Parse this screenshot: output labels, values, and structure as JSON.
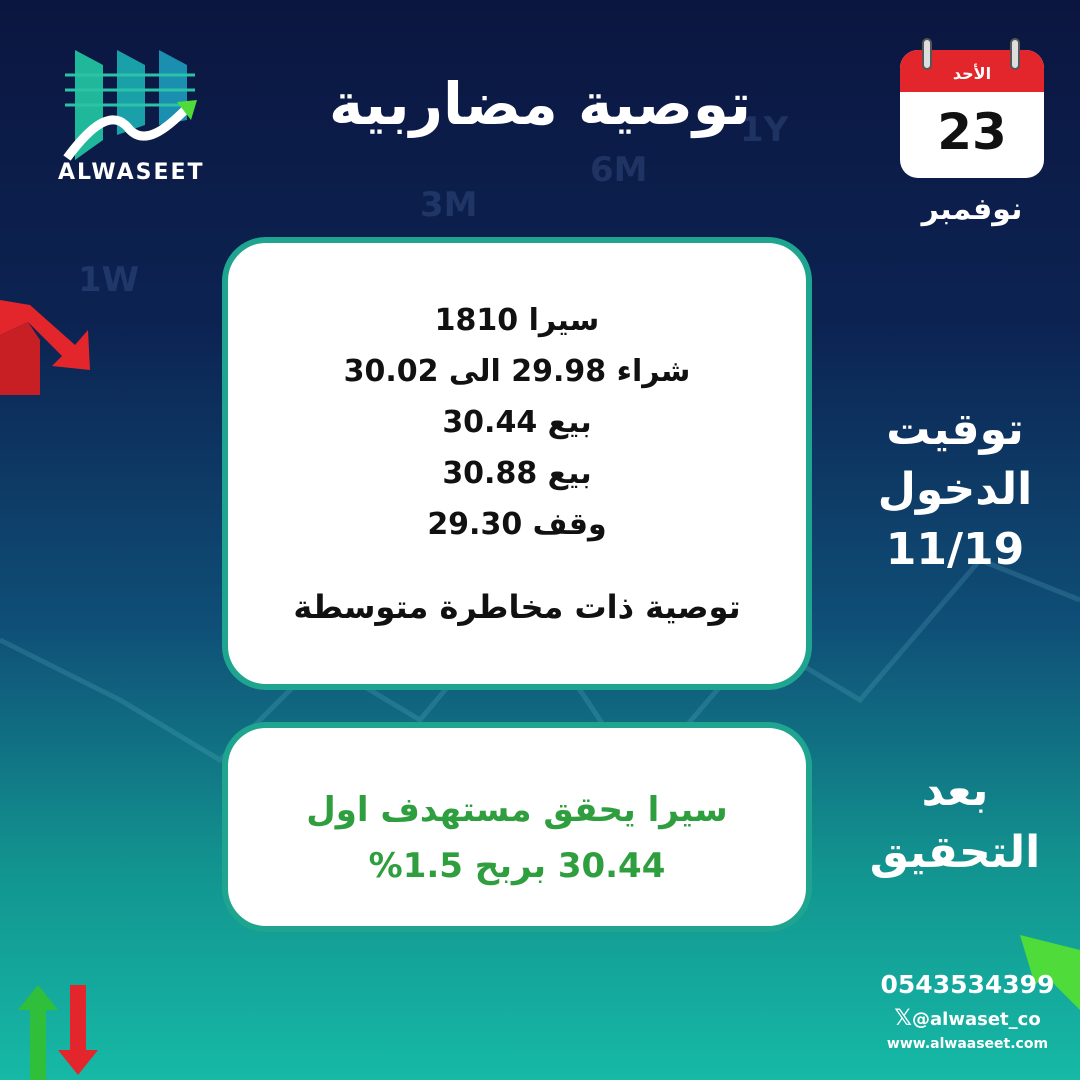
{
  "brand": {
    "name": "ALWASEET"
  },
  "header": {
    "title": "توصية مضاربية"
  },
  "calendar": {
    "weekday": "الأحد",
    "day": "23",
    "month": "نوفمبر"
  },
  "recommendation": {
    "lines": [
      "سيرا 1810",
      "شراء 29.98 الى 30.02",
      "بيع 30.44",
      "بيع 30.88",
      "وقف 29.30"
    ],
    "risk": "توصية ذات مخاطرة متوسطة"
  },
  "entry": {
    "label_1": "توقيت",
    "label_2": "الدخول",
    "date": "11/19"
  },
  "result": {
    "lines": [
      "سيرا يحقق مستهدف اول",
      "30.44 بربح 1.5%"
    ],
    "label_1": "بعد",
    "label_2": "التحقيق",
    "color": "#2f9e3f"
  },
  "background_labels": [
    "1W",
    "3M",
    "6M",
    "1Y"
  ],
  "contact": {
    "phone": "0543534399",
    "handle": "@alwaset_co",
    "website": "www.alwaaseet.com"
  },
  "colors": {
    "accent": "#1fa58f",
    "calendar_red": "#e3262b"
  }
}
